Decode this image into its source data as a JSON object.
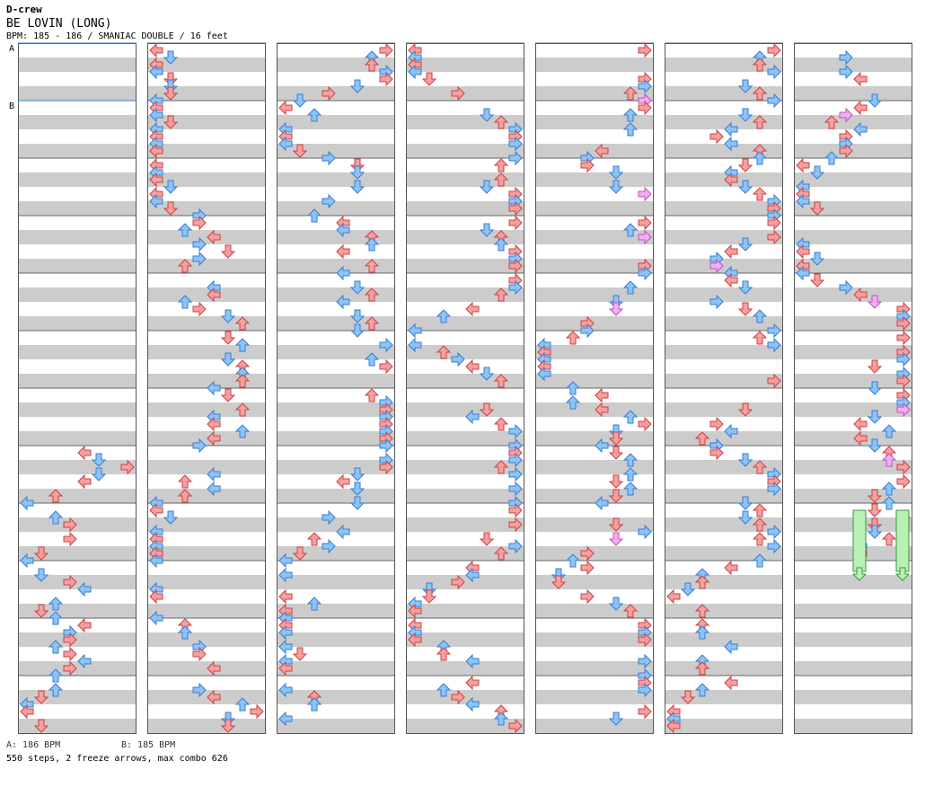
{
  "header": {
    "artist": "D-crew",
    "title": "BE LOVIN (LONG)",
    "meta": "BPM: 185 - 186 / SMANIAC DOUBLE / 16 feet"
  },
  "chart_data": {
    "type": "step chart (dance notes)",
    "columns": 7,
    "measures_per_column": 12,
    "beats_per_measure": 4,
    "lanes": [
      "left",
      "down",
      "up",
      "right",
      "left",
      "down",
      "up",
      "right"
    ],
    "bpm_marks": [
      {
        "label": "A",
        "measure": 0
      },
      {
        "label": "B",
        "measure": 1
      }
    ],
    "note_colors": {
      "red": "#f4a0a0",
      "blue": "#8cc4f4",
      "pink": "#f0b0f0",
      "freeze": "#b8f0b8"
    },
    "stripe_colors": {
      "light": "#ffffff",
      "dark": "#cccccc"
    },
    "freeze_arrows": [
      {
        "column": 7,
        "lane": 4,
        "from_measure": 8,
        "to_measure": 9
      },
      {
        "column": 7,
        "lane": 7,
        "from_measure": 8,
        "to_measure": 9
      }
    ]
  },
  "footer": {
    "bpm_a": "A: 186 BPM",
    "bpm_b": "B: 185 BPM",
    "stats": "550 steps, 2 freeze arrows, max combo 626"
  }
}
